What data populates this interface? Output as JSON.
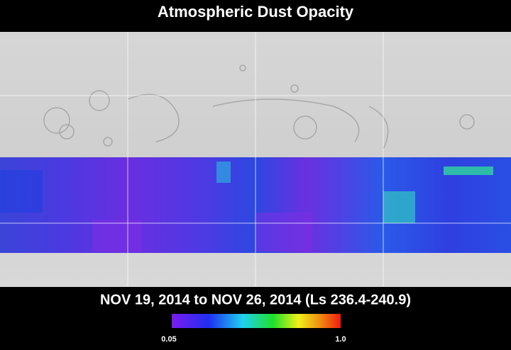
{
  "title": "Atmospheric Dust Opacity",
  "subtitle": "NOV 19, 2014 to NOV 26, 2014 (Ls 236.4-240.9)",
  "colorbar": {
    "min_label": "0.05",
    "max_label": "1.0"
  }
}
